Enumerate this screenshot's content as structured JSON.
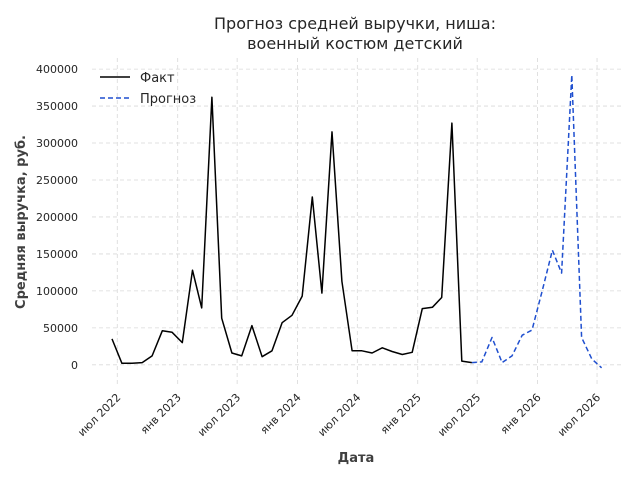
{
  "chart_data": {
    "type": "line",
    "title_lines": [
      "Прогноз средней выручки, ниша:",
      "военный костюм детский"
    ],
    "xlabel": "Дата",
    "ylabel": "Средняя выручка, руб.",
    "ylim": [
      -30000,
      415000
    ],
    "xlim": [
      "2022-04-15",
      "2026-09-15"
    ],
    "yticks": [
      0,
      50000,
      100000,
      150000,
      200000,
      250000,
      300000,
      350000,
      400000
    ],
    "ytick_labels": [
      "0",
      "50000",
      "100000",
      "150000",
      "200000",
      "250000",
      "300000",
      "350000",
      "400000"
    ],
    "xticks": [
      "2022-07-01",
      "2023-01-01",
      "2023-07-01",
      "2024-01-01",
      "2024-07-01",
      "2025-01-01",
      "2025-07-01",
      "2026-01-01",
      "2026-07-01"
    ],
    "xtick_labels": [
      "июл 2022",
      "янв 2023",
      "июл 2023",
      "янв 2024",
      "июл 2024",
      "янв 2025",
      "июл 2025",
      "янв 2026",
      "июл 2026"
    ],
    "grid": true,
    "legend_position": "top-left",
    "series": [
      {
        "name": "Факт",
        "color": "#000000",
        "style": "solid",
        "x": [
          "2022-06-15",
          "2022-07-15",
          "2022-08-15",
          "2022-09-15",
          "2022-10-15",
          "2022-11-15",
          "2022-12-15",
          "2023-01-15",
          "2023-02-15",
          "2023-03-15",
          "2023-04-15",
          "2023-05-15",
          "2023-06-15",
          "2023-07-15",
          "2023-08-15",
          "2023-09-15",
          "2023-10-15",
          "2023-11-15",
          "2023-12-15",
          "2024-01-15",
          "2024-02-15",
          "2024-03-15",
          "2024-04-15",
          "2024-05-15",
          "2024-06-15",
          "2024-07-15",
          "2024-08-15",
          "2024-09-15",
          "2024-10-15",
          "2024-11-15",
          "2024-12-15",
          "2025-01-15",
          "2025-02-15",
          "2025-03-15",
          "2025-04-15",
          "2025-05-15",
          "2025-06-15"
        ],
        "y": [
          35000,
          2000,
          2000,
          3000,
          12000,
          46000,
          44000,
          30000,
          128000,
          77000,
          362000,
          63000,
          16000,
          12000,
          53000,
          11000,
          19000,
          57000,
          67000,
          93000,
          227000,
          97000,
          315000,
          113000,
          19000,
          19000,
          16000,
          23000,
          18000,
          14000,
          17000,
          76000,
          78000,
          91000,
          327000,
          5000,
          3000
        ]
      },
      {
        "name": "Прогноз",
        "color": "#1f4fcf",
        "style": "dashed",
        "x": [
          "2025-06-15",
          "2025-07-15",
          "2025-08-15",
          "2025-09-15",
          "2025-10-15",
          "2025-11-15",
          "2025-12-15",
          "2026-01-15",
          "2026-02-15",
          "2026-03-15",
          "2026-04-15",
          "2026-05-15",
          "2026-06-15",
          "2026-07-15"
        ],
        "y": [
          3000,
          4000,
          37000,
          3000,
          12000,
          40000,
          47000,
          100000,
          155000,
          124000,
          392000,
          37000,
          8000,
          -4000
        ]
      }
    ]
  }
}
